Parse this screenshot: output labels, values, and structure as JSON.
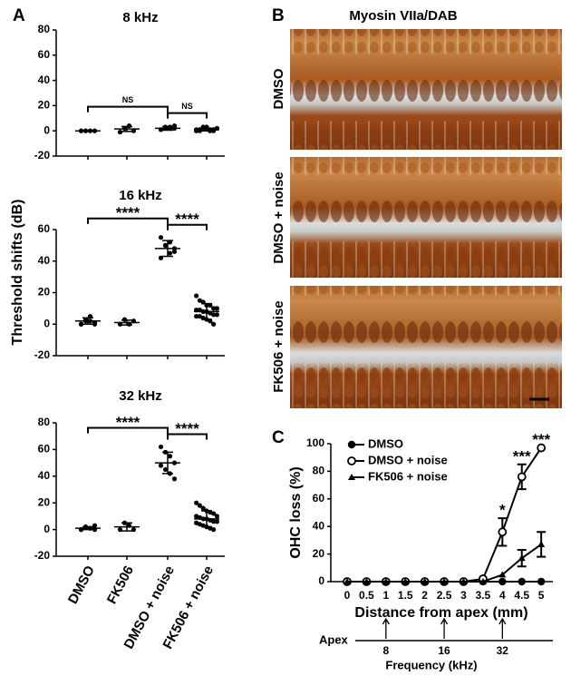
{
  "panel_labels": [
    "A",
    "B",
    "C"
  ],
  "micrographs": {
    "title": "Myosin VIIa/DAB",
    "labels": [
      "DMSO",
      "DMSO + noise",
      "FK506 + noise"
    ]
  },
  "chart_data": [
    {
      "type": "dotplot",
      "title": "8 kHz",
      "categories": [
        null,
        null,
        null,
        null
      ],
      "points": [
        [
          0,
          0,
          0,
          0,
          0,
          0,
          0,
          0
        ],
        [
          -1,
          2,
          4,
          0
        ],
        [
          1,
          2,
          3,
          2,
          1,
          3,
          2,
          4
        ],
        [
          0,
          1,
          2,
          3,
          0,
          1,
          2,
          0,
          1,
          3,
          2,
          0,
          1,
          2,
          1,
          0,
          3,
          2,
          1,
          0
        ]
      ],
      "mean": [
        0,
        1.5,
        2,
        1
      ],
      "sd": [
        0,
        2,
        1.5,
        1
      ],
      "ylim": [
        -20,
        80
      ],
      "yticks": [
        -20,
        0,
        20,
        40,
        60,
        80
      ],
      "comparisons": [
        {
          "groups": [
            0,
            2
          ],
          "label": "NS"
        },
        {
          "groups": [
            2,
            3
          ],
          "label": "NS"
        }
      ]
    },
    {
      "type": "dotplot",
      "title": "16 kHz",
      "ylabel": "Threshold shifts (dB)",
      "categories": [
        null,
        null,
        null,
        null
      ],
      "points": [
        [
          0,
          2,
          5,
          1,
          0,
          3,
          2,
          0
        ],
        [
          0,
          3,
          0,
          2
        ],
        [
          55,
          50,
          45,
          48,
          42,
          50,
          52,
          46
        ],
        [
          18,
          15,
          14,
          12,
          12,
          10,
          10,
          9,
          9,
          8,
          8,
          7,
          6,
          6,
          5,
          5,
          4,
          3,
          2,
          0
        ]
      ],
      "mean": [
        2,
        1,
        48,
        8
      ],
      "sd": [
        2,
        1.5,
        5,
        5
      ],
      "ylim": [
        -20,
        60
      ],
      "yticks": [
        -20,
        0,
        20,
        40,
        60
      ],
      "comparisons": [
        {
          "groups": [
            0,
            2
          ],
          "label": "****"
        },
        {
          "groups": [
            2,
            3
          ],
          "label": "****"
        }
      ]
    },
    {
      "type": "dotplot",
      "title": "32 kHz",
      "categories": [
        "DMSO",
        "FK506",
        "DMSO + noise",
        "FK506 + noise"
      ],
      "points": [
        [
          0,
          2,
          1,
          3,
          0,
          2,
          1,
          0
        ],
        [
          0,
          5,
          3,
          0
        ],
        [
          62,
          58,
          55,
          50,
          48,
          45,
          42,
          38
        ],
        [
          20,
          18,
          16,
          14,
          13,
          12,
          10,
          10,
          9,
          8,
          8,
          7,
          6,
          6,
          5,
          4,
          3,
          2,
          1,
          0
        ]
      ],
      "mean": [
        1,
        2,
        50,
        8
      ],
      "sd": [
        1,
        3,
        8,
        6
      ],
      "ylim": [
        -20,
        80
      ],
      "yticks": [
        -20,
        0,
        20,
        40,
        60,
        80
      ],
      "comparisons": [
        {
          "groups": [
            0,
            2
          ],
          "label": "****"
        },
        {
          "groups": [
            2,
            3
          ],
          "label": "****"
        }
      ]
    },
    {
      "type": "line",
      "xlabel": "Distance from apex (mm)",
      "ylabel": "OHC loss (%)",
      "x": [
        0,
        0.5,
        1,
        1.5,
        2,
        2.5,
        3,
        3.5,
        4,
        4.5,
        5
      ],
      "series": [
        {
          "name": "DMSO",
          "color": "#000000",
          "marker": "circle",
          "values": [
            0,
            0,
            0,
            0,
            0,
            0,
            0,
            0,
            0,
            0,
            0
          ]
        },
        {
          "name": "DMSO + noise",
          "color": "#000000",
          "marker": "open-circle",
          "values": [
            0,
            0,
            0,
            0,
            0,
            0,
            0,
            2,
            36,
            76,
            97
          ],
          "errors": [
            null,
            null,
            null,
            null,
            null,
            null,
            null,
            null,
            10,
            9,
            null
          ]
        },
        {
          "name": "FK506 + noise",
          "color": "#000000",
          "marker": "triangle",
          "values": [
            0,
            0,
            0,
            0,
            0,
            0,
            0,
            0,
            5,
            17,
            27
          ],
          "errors": [
            null,
            null,
            null,
            null,
            null,
            null,
            null,
            null,
            null,
            6,
            9
          ]
        }
      ],
      "xlim": [
        -0.42,
        5.3
      ],
      "xticks": [
        0,
        0.5,
        1,
        1.5,
        2,
        2.5,
        3,
        3.5,
        4,
        4.5,
        5
      ],
      "ylim": [
        0,
        100
      ],
      "yticks": [
        0,
        20,
        40,
        60,
        80,
        100
      ],
      "annotations": [
        {
          "x": 4,
          "text": "*"
        },
        {
          "x": 4.5,
          "text": "***"
        },
        {
          "x": 5,
          "text": "***"
        }
      ],
      "frequency_axis": {
        "start_label": "Apex",
        "label": "Frequency (kHz)",
        "markers": [
          {
            "label": 8,
            "x": 1
          },
          {
            "label": 16,
            "x": 2.5
          },
          {
            "label": 32,
            "x": 4
          }
        ]
      }
    }
  ]
}
